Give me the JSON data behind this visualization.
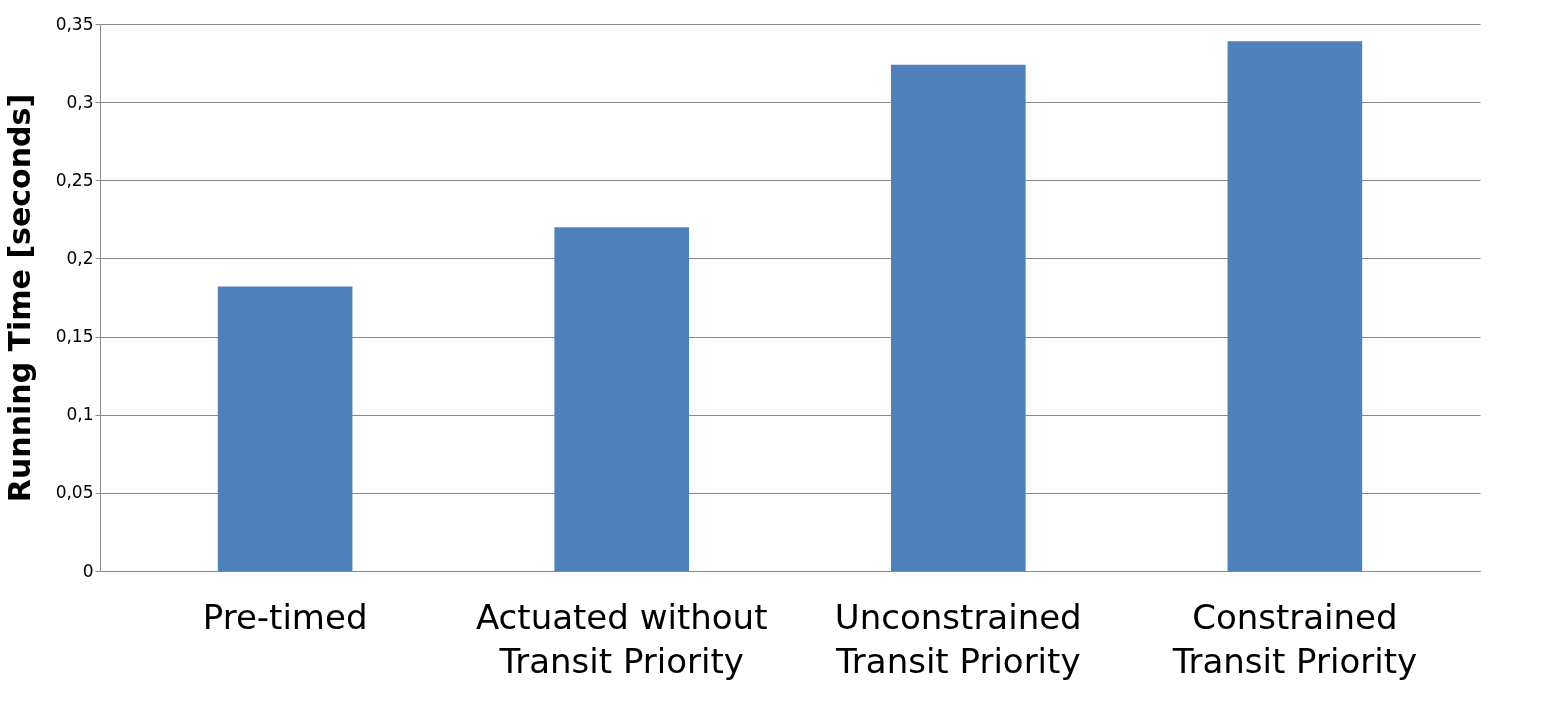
{
  "chart_data": {
    "type": "bar",
    "ylabel": "Running Time [seconds]",
    "categories": [
      "Pre-timed",
      "Actuated without Transit Priority",
      "Unconstrained Transit Priority",
      "Constrained Transit Priority"
    ],
    "values": [
      0.182,
      0.22,
      0.324,
      0.339
    ],
    "color": "#4f81bd",
    "ylim": [
      0,
      0.35
    ],
    "yticks": [
      0,
      {
        "value": 0.05,
        "label": "0,05"
      },
      {
        "value": 0.1,
        "label": "0,1"
      },
      {
        "value": 0.15,
        "label": "0,15"
      },
      {
        "value": 0.2,
        "label": "0,2"
      },
      {
        "value": 0.25,
        "label": "0,25"
      },
      {
        "value": 0.3,
        "label": "0,3"
      },
      {
        "value": 0.35,
        "label": "0,35"
      }
    ],
    "grid": "y"
  }
}
